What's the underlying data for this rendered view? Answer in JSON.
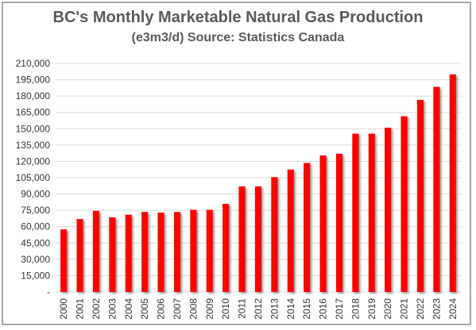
{
  "chart_data": {
    "type": "bar",
    "title": "BC's Monthly Marketable Natural Gas Production",
    "subtitle": "(e3m3/d) Source: Statistics Canada",
    "xlabel": "",
    "ylabel": "",
    "categories": [
      "2000",
      "2001",
      "2002",
      "2003",
      "2004",
      "2005",
      "2006",
      "2007",
      "2008",
      "2009",
      "2010",
      "2011",
      "2012",
      "2013",
      "2014",
      "2015",
      "2016",
      "2017",
      "2018",
      "2019",
      "2020",
      "2021",
      "2022",
      "2023",
      "2024"
    ],
    "series": [
      {
        "values": [
          57500,
          67000,
          74500,
          68500,
          71000,
          73500,
          73000,
          73500,
          75500,
          75500,
          81000,
          97000,
          97000,
          105500,
          112500,
          118500,
          125500,
          127000,
          145500,
          145500,
          151000,
          161500,
          176500,
          188500,
          200000
        ]
      }
    ],
    "ylim": [
      0,
      210000
    ],
    "yticks": [
      "-",
      "15,000",
      "30,000",
      "45,000",
      "60,000",
      "75,000",
      "90,000",
      "105,000",
      "120,000",
      "135,000",
      "150,000",
      "165,000",
      "180,000",
      "195,000",
      "210,000"
    ],
    "grid": true,
    "legend": "none",
    "colors": {
      "bar": "#ff0000",
      "bar_shadow": "#7f7f7f",
      "grid": "#d9d9d9",
      "title": "#595959"
    }
  }
}
